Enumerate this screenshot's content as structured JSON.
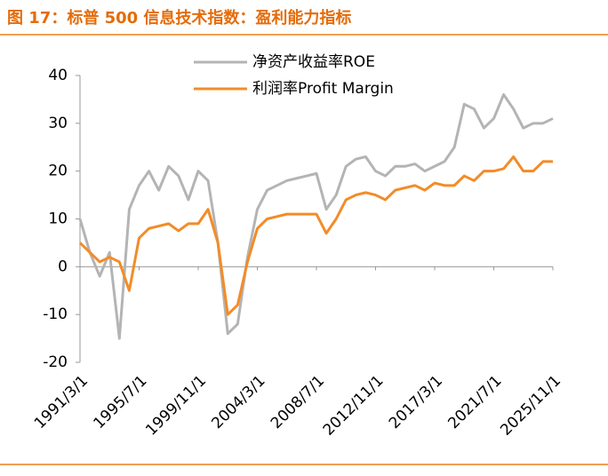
{
  "chart_data": {
    "type": "line",
    "title": "图 17：标普 500 信息技术指数：盈利能力指标",
    "categories": [
      "1991/3/1",
      null,
      null,
      null,
      null,
      null,
      "1995/7/1",
      null,
      null,
      null,
      null,
      null,
      "1999/11/1",
      null,
      null,
      null,
      null,
      null,
      "2004/3/1",
      null,
      null,
      null,
      null,
      null,
      "2008/7/1",
      null,
      null,
      null,
      null,
      null,
      "2012/11/1",
      null,
      null,
      null,
      null,
      null,
      "2017/3/1",
      null,
      null,
      null,
      null,
      null,
      "2021/7/1",
      null,
      null,
      null,
      null,
      null,
      "2025/11/1"
    ],
    "series": [
      {
        "name": "净资产收益率ROE",
        "color": "#b4b4b4",
        "values": [
          10,
          3,
          -2,
          3,
          -15,
          12,
          17,
          20,
          16,
          21,
          19,
          14,
          20,
          18,
          5,
          -14,
          -12,
          2,
          12,
          16,
          17,
          18,
          18.5,
          19,
          19.5,
          12,
          15,
          21,
          22.5,
          23,
          20,
          19,
          21,
          21,
          21.5,
          20,
          21,
          22,
          25,
          34,
          33,
          29,
          31,
          36,
          33,
          29,
          30,
          30,
          31
        ]
      },
      {
        "name": "利润率Profit Margin",
        "color": "#f28c28",
        "values": [
          5,
          3,
          1,
          2,
          1,
          -5,
          6,
          8,
          8.5,
          9,
          7.5,
          9,
          9,
          12,
          5,
          -10,
          -8,
          1,
          8,
          10,
          10.5,
          11,
          11,
          11,
          11,
          7,
          10,
          14,
          15,
          15.5,
          15,
          14,
          16,
          16.5,
          17,
          16,
          17.5,
          17,
          17,
          19,
          18,
          20,
          20,
          20.5,
          23,
          20,
          20,
          22,
          22
        ]
      }
    ],
    "ylim": [
      -20,
      40
    ],
    "yticks": [
      -20,
      -10,
      0,
      10,
      20,
      30,
      40
    ],
    "legend": "top"
  }
}
